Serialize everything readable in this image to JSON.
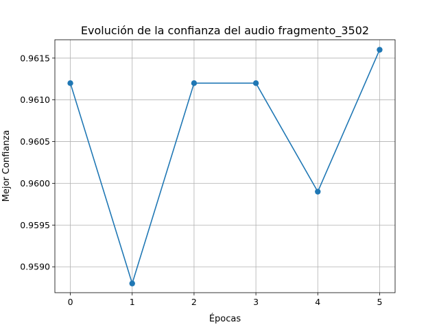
{
  "chart_data": {
    "type": "line",
    "title": "Evolución de la confianza del audio fragmento_3502",
    "xlabel": "Épocas",
    "ylabel": "Mejor Confianza",
    "x": [
      0,
      1,
      2,
      3,
      4,
      5
    ],
    "series": [
      {
        "values": [
          0.9612,
          0.9588,
          0.9612,
          0.9612,
          0.9599,
          0.9616
        ],
        "color": "#1f77b4",
        "marker": "circle"
      }
    ],
    "xlim": [
      -0.25,
      5.25
    ],
    "ylim": [
      0.95869,
      0.96172
    ],
    "xticks": [
      0,
      1,
      2,
      3,
      4,
      5
    ],
    "yticks": [
      0.959,
      0.9595,
      0.96,
      0.9605,
      0.961,
      0.9615
    ],
    "ytick_labels": [
      "0.9590",
      "0.9595",
      "0.9600",
      "0.9605",
      "0.9610",
      "0.9615"
    ],
    "grid": true,
    "legend": "none"
  }
}
